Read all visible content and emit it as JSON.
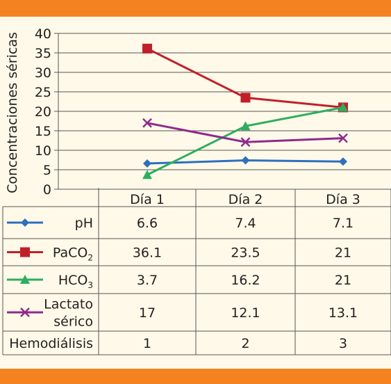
{
  "chart_data": {
    "type": "line",
    "ylabel": "Concentraciones séricas",
    "ylim": [
      0,
      40
    ],
    "yticks": [
      0,
      5,
      10,
      15,
      20,
      25,
      30,
      35,
      40
    ],
    "categories": [
      "Día 1",
      "Día 2",
      "Día 3"
    ],
    "grid": "horizontal",
    "legend": "table-left",
    "series": [
      {
        "name": "pH",
        "label_lines": [
          "pH"
        ],
        "sub": "",
        "values": [
          6.6,
          7.4,
          7.1
        ],
        "display": [
          "6.6",
          "7.4",
          "7.1"
        ],
        "color": "#2E6FBE",
        "marker": "diamond"
      },
      {
        "name": "PaCO2",
        "label_lines": [
          "PaCO"
        ],
        "sub": "2",
        "values": [
          36.1,
          23.5,
          21
        ],
        "display": [
          "36.1",
          "23.5",
          "21"
        ],
        "color": "#C0202A",
        "marker": "square"
      },
      {
        "name": "HCO3",
        "label_lines": [
          "HCO"
        ],
        "sub": "3",
        "values": [
          3.7,
          16.2,
          21
        ],
        "display": [
          "3.7",
          "16.2",
          "21"
        ],
        "color": "#2DAE5E",
        "marker": "triangle"
      },
      {
        "name": "Lactato sérico",
        "label_lines": [
          "Lactato",
          "sérico"
        ],
        "sub": "",
        "values": [
          17,
          12.1,
          13.1
        ],
        "display": [
          "17",
          "12.1",
          "13.1"
        ],
        "color": "#8E2A8C",
        "marker": "x"
      }
    ],
    "extra_rows": [
      {
        "label": "Hemodiálisis",
        "values": [
          "1",
          "2",
          "3"
        ]
      }
    ]
  },
  "colors": {
    "band": "#F48221",
    "background": "#FEF9E8",
    "grid": "#555555",
    "text": "#231F20"
  }
}
